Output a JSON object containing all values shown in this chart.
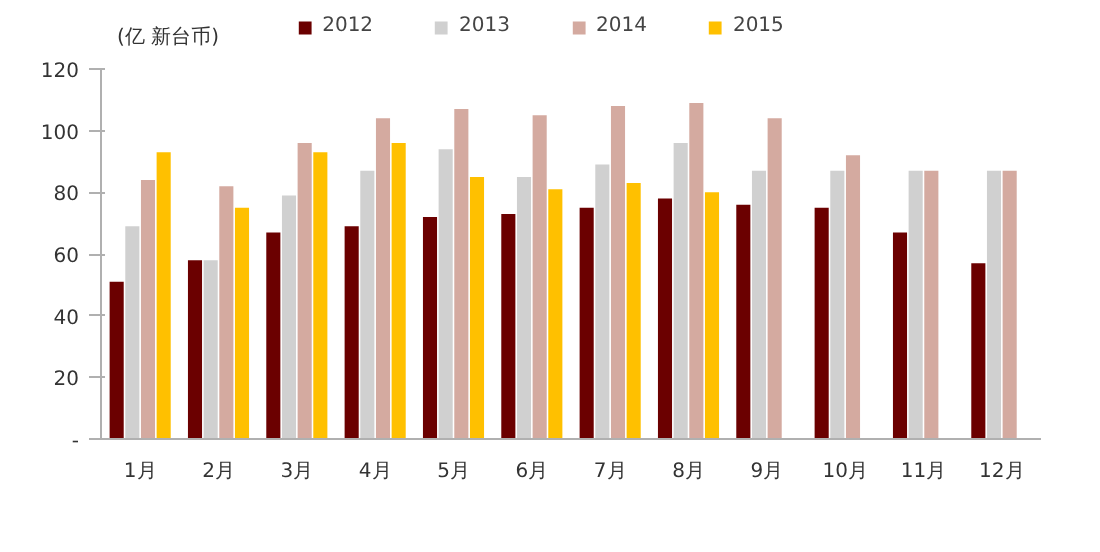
{
  "chart_data": {
    "type": "bar",
    "ylabel": "(亿 新台币)",
    "categories": [
      "1月",
      "2月",
      "3月",
      "4月",
      "5月",
      "6月",
      "7月",
      "8月",
      "9月",
      "10月",
      "11月",
      "12月"
    ],
    "series": [
      {
        "name": "2012",
        "color": "#6b0000",
        "values": [
          51,
          58,
          67,
          69,
          72,
          73,
          75,
          78,
          76,
          75,
          67,
          57
        ]
      },
      {
        "name": "2013",
        "color": "#d0d0d0",
        "values": [
          69,
          58,
          79,
          87,
          94,
          85,
          89,
          96,
          87,
          87,
          87,
          87
        ]
      },
      {
        "name": "2014",
        "color": "#d4aaa0",
        "values": [
          84,
          82,
          96,
          104,
          107,
          105,
          108,
          109,
          104,
          92,
          87,
          87
        ]
      },
      {
        "name": "2015",
        "color": "#ffc000",
        "values": [
          93,
          75,
          93,
          96,
          85,
          81,
          83,
          80,
          null,
          null,
          null,
          null
        ]
      }
    ],
    "ylim": [
      0,
      120
    ],
    "yticks": [
      {
        "value": 0,
        "label": "-"
      },
      20,
      40,
      60,
      80,
      100,
      120
    ],
    "grid": false,
    "legend": "top"
  }
}
